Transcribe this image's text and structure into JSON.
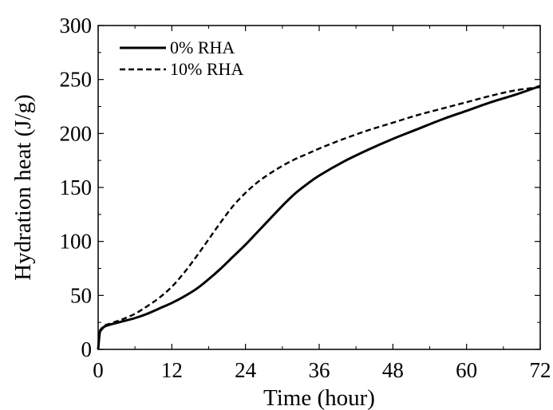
{
  "chart_data": {
    "type": "line",
    "xlabel": "Time (hour)",
    "ylabel": "Hydration heat (J/g)",
    "xlim": [
      0,
      72
    ],
    "ylim": [
      0,
      300
    ],
    "xticks": [
      0,
      12,
      24,
      36,
      48,
      60,
      72
    ],
    "yticks": [
      0,
      50,
      100,
      150,
      200,
      250,
      300
    ],
    "grid": false,
    "legend_position": "top-left",
    "series": [
      {
        "name": "0% RHA",
        "style": "solid",
        "color": "#000000",
        "x": [
          0,
          0.25,
          0.5,
          1,
          2,
          4,
          6,
          8,
          10,
          12,
          14,
          16,
          18,
          20,
          22,
          24,
          26,
          28,
          30,
          32,
          34,
          36,
          40,
          44,
          48,
          52,
          56,
          60,
          64,
          68,
          72
        ],
        "y": [
          0,
          15,
          18,
          21,
          23,
          26,
          29,
          33,
          38,
          43,
          49,
          56,
          65,
          75,
          86,
          97,
          109,
          121,
          133,
          144,
          153,
          161,
          174,
          185,
          195,
          204,
          213,
          221,
          229,
          236,
          244
        ]
      },
      {
        "name": "10% RHA",
        "style": "dashed",
        "color": "#000000",
        "x": [
          0,
          0.25,
          0.5,
          1,
          2,
          4,
          6,
          8,
          10,
          12,
          14,
          16,
          18,
          20,
          22,
          24,
          26,
          28,
          30,
          32,
          34,
          36,
          40,
          44,
          48,
          52,
          56,
          60,
          64,
          68,
          72
        ],
        "y": [
          0,
          16,
          19,
          22,
          24,
          28,
          33,
          40,
          48,
          58,
          71,
          86,
          102,
          118,
          133,
          145,
          155,
          163,
          170,
          176,
          181,
          186,
          195,
          203,
          210,
          217,
          223,
          229,
          235,
          240,
          243
        ]
      }
    ]
  }
}
